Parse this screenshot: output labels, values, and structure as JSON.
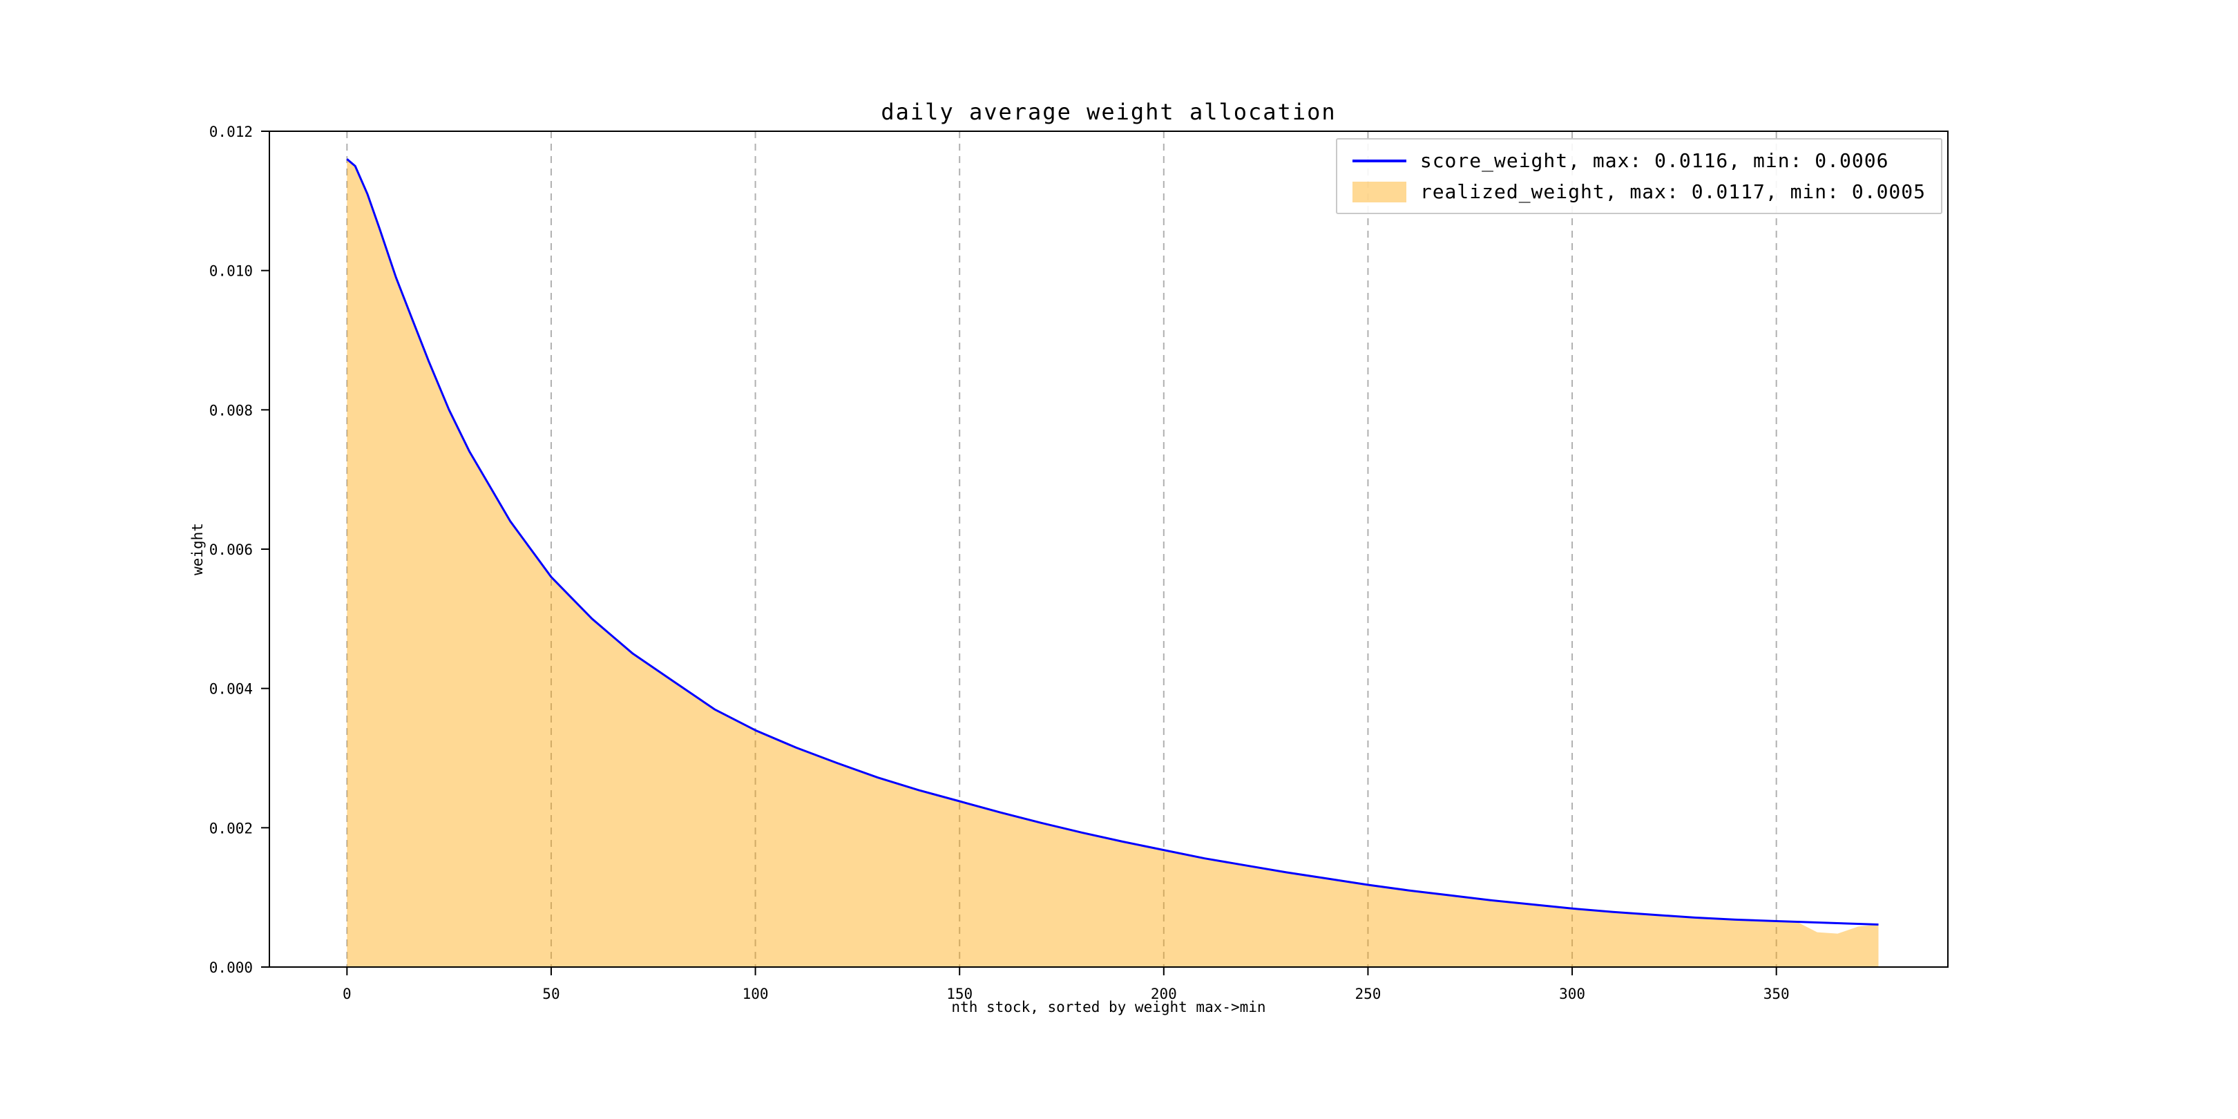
{
  "chart_data": {
    "type": "line",
    "title": "daily average weight allocation",
    "xlabel": "nth stock, sorted by weight max->min",
    "ylabel": "weight",
    "xlim": [
      -19,
      392
    ],
    "ylim": [
      0,
      0.012
    ],
    "xticks": [
      0,
      50,
      100,
      150,
      200,
      250,
      300,
      350
    ],
    "yticks": [
      0,
      0.002,
      0.004,
      0.006,
      0.008,
      0.01,
      0.012
    ],
    "grid": {
      "axis": "x",
      "style": "dashed",
      "color": "#b0b0b0"
    },
    "legend": {
      "position": "upper right",
      "items": [
        {
          "label": "score_weight, max: 0.0116, min: 0.0006",
          "type": "line"
        },
        {
          "label": "realized_weight, max: 0.0117, min: 0.0005",
          "type": "patch"
        }
      ]
    },
    "series": [
      {
        "name": "score_weight",
        "type": "line",
        "color": "#0000ff",
        "max": 0.0116,
        "min": 0.0006,
        "x": [
          0,
          2,
          5,
          8,
          12,
          16,
          20,
          25,
          30,
          35,
          40,
          45,
          50,
          55,
          60,
          70,
          80,
          90,
          100,
          110,
          120,
          130,
          140,
          150,
          160,
          170,
          180,
          190,
          200,
          210,
          220,
          230,
          240,
          250,
          260,
          270,
          280,
          290,
          300,
          310,
          320,
          330,
          340,
          350,
          355,
          360,
          365,
          370,
          375
        ],
        "y": [
          0.0116,
          0.0115,
          0.0111,
          0.0106,
          0.0099,
          0.0093,
          0.0087,
          0.008,
          0.0074,
          0.0069,
          0.0064,
          0.006,
          0.0056,
          0.0053,
          0.005,
          0.0045,
          0.0041,
          0.0037,
          0.0034,
          0.00315,
          0.00293,
          0.00272,
          0.00254,
          0.00238,
          0.00222,
          0.00207,
          0.00193,
          0.0018,
          0.00168,
          0.00156,
          0.00146,
          0.00136,
          0.00127,
          0.00118,
          0.0011,
          0.00103,
          0.00096,
          0.0009,
          0.00084,
          0.00079,
          0.00075,
          0.00071,
          0.00068,
          0.00066,
          0.00065,
          0.00064,
          0.00063,
          0.00062,
          0.00061
        ]
      },
      {
        "name": "realized_weight",
        "type": "area",
        "color": "#ffa500",
        "opacity": 0.42,
        "max": 0.0117,
        "min": 0.0005,
        "x": [
          0,
          2,
          5,
          8,
          12,
          16,
          20,
          25,
          30,
          35,
          40,
          45,
          50,
          55,
          60,
          70,
          80,
          90,
          100,
          110,
          120,
          130,
          140,
          150,
          160,
          170,
          180,
          190,
          200,
          210,
          220,
          230,
          240,
          250,
          260,
          270,
          280,
          290,
          300,
          310,
          320,
          330,
          340,
          350,
          355,
          360,
          365,
          370,
          375
        ],
        "y": [
          0.0116,
          0.0115,
          0.0111,
          0.0106,
          0.0099,
          0.0093,
          0.0087,
          0.008,
          0.0074,
          0.0069,
          0.0064,
          0.006,
          0.0056,
          0.0053,
          0.005,
          0.0045,
          0.0041,
          0.0037,
          0.0034,
          0.00315,
          0.00293,
          0.00272,
          0.00254,
          0.00238,
          0.00222,
          0.00207,
          0.00193,
          0.0018,
          0.00168,
          0.00156,
          0.00146,
          0.00136,
          0.00127,
          0.00118,
          0.0011,
          0.00103,
          0.00096,
          0.0009,
          0.00084,
          0.00079,
          0.00075,
          0.00071,
          0.00068,
          0.00066,
          0.00065,
          0.0005,
          0.00048,
          0.00058,
          0.00061
        ]
      }
    ]
  }
}
